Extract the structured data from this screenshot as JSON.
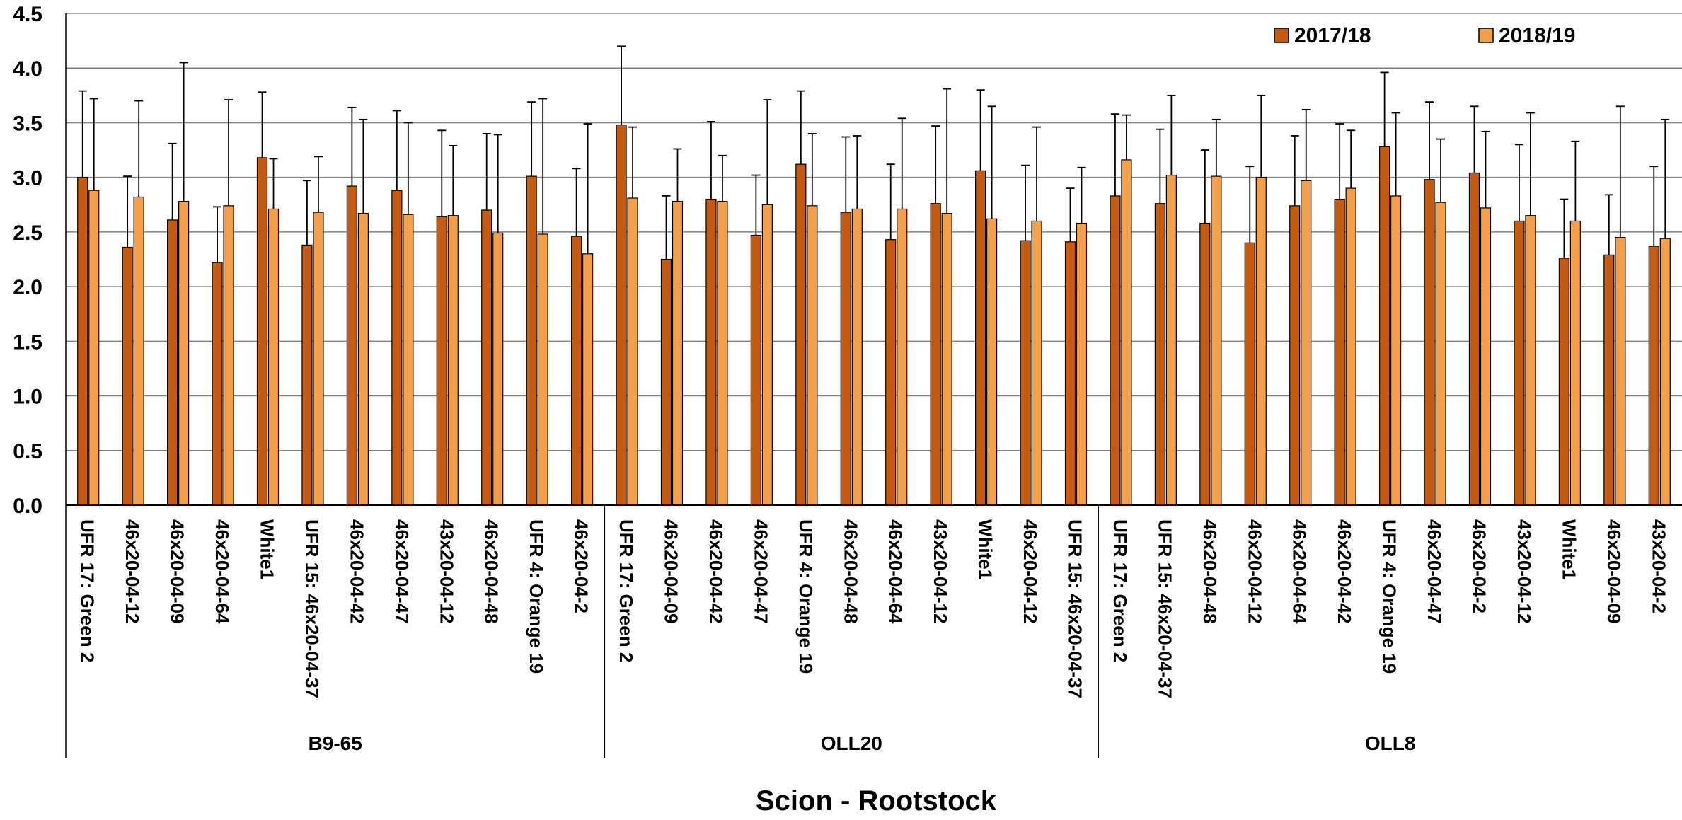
{
  "chart_data": {
    "type": "bar",
    "title": "",
    "xlabel": "Scion - Rootstock",
    "ylabel": "",
    "ylim": [
      0,
      4.5
    ],
    "yticks": [
      "0.0",
      "0.5",
      "1.0",
      "1.5",
      "2.0",
      "2.5",
      "3.0",
      "3.5",
      "4.0",
      "4.5"
    ],
    "grid": true,
    "legend_position": "top-right",
    "colors": {
      "2017/18": "#c55a11",
      "2018/19": "#f4a04a",
      "error_bar": "#000000",
      "axis": "#000000"
    },
    "groups": [
      {
        "name": "B9-65",
        "categories": [
          "UFR 17: Green 2",
          "46x20-04-12",
          "46x20-04-09",
          "46x20-04-64",
          "White1",
          "UFR 15: 46x20-04-37",
          "46x20-04-42",
          "46x20-04-47",
          "43x20-04-12",
          "46x20-04-48",
          "UFR 4: Orange 19",
          "46x20-04-2"
        ]
      },
      {
        "name": "OLL20",
        "categories": [
          "UFR 17: Green 2",
          "46x20-04-09",
          "46x20-04-42",
          "46x20-04-47",
          "UFR 4: Orange 19",
          "46x20-04-48",
          "46x20-04-64",
          "43x20-04-12",
          "White1",
          "46x20-04-12",
          "UFR 15: 46x20-04-37"
        ]
      },
      {
        "name": "OLL8",
        "categories": [
          "UFR 17: Green 2",
          "UFR 15: 46x20-04-37",
          "46x20-04-48",
          "46x20-04-12",
          "46x20-04-64",
          "46x20-04-42",
          "UFR 4: Orange 19",
          "46x20-04-47",
          "46x20-04-2",
          "43x20-04-12",
          "White1",
          "46x20-04-09",
          "43x20-04-2"
        ]
      }
    ],
    "series": [
      {
        "name": "2017/18",
        "values": [
          3.0,
          2.36,
          2.61,
          2.22,
          3.18,
          2.38,
          2.92,
          2.88,
          2.64,
          2.7,
          3.01,
          2.46,
          3.48,
          2.25,
          2.8,
          2.47,
          3.12,
          2.68,
          2.43,
          2.76,
          3.06,
          2.42,
          2.41,
          2.83,
          2.76,
          2.58,
          2.4,
          2.74,
          2.8,
          3.28,
          2.98,
          3.04,
          2.6,
          2.26,
          2.29,
          2.37
        ],
        "error_upper": [
          3.79,
          3.01,
          3.31,
          2.73,
          3.78,
          2.97,
          3.64,
          3.61,
          3.43,
          3.4,
          3.69,
          3.08,
          4.2,
          2.83,
          3.51,
          3.02,
          3.79,
          3.37,
          3.12,
          3.47,
          3.8,
          3.11,
          2.9,
          3.58,
          3.44,
          3.25,
          3.1,
          3.38,
          3.49,
          3.96,
          3.69,
          3.65,
          3.3,
          2.8,
          2.84,
          3.1
        ]
      },
      {
        "name": "2018/19",
        "values": [
          2.88,
          2.82,
          2.78,
          2.74,
          2.71,
          2.68,
          2.67,
          2.66,
          2.65,
          2.49,
          2.48,
          2.3,
          2.81,
          2.78,
          2.78,
          2.75,
          2.74,
          2.71,
          2.71,
          2.67,
          2.62,
          2.6,
          2.58,
          3.16,
          3.02,
          3.01,
          3.0,
          2.97,
          2.9,
          2.83,
          2.77,
          2.72,
          2.65,
          2.6,
          2.45,
          2.44
        ],
        "error_upper": [
          3.72,
          3.7,
          4.05,
          3.71,
          3.17,
          3.19,
          3.53,
          3.5,
          3.29,
          3.39,
          3.72,
          3.49,
          3.46,
          3.26,
          3.2,
          3.71,
          3.4,
          3.38,
          3.54,
          3.81,
          3.65,
          3.46,
          3.09,
          3.57,
          3.75,
          3.53,
          3.75,
          3.62,
          3.43,
          3.59,
          3.35,
          3.42,
          3.59,
          3.33,
          3.65,
          3.53
        ]
      }
    ]
  }
}
